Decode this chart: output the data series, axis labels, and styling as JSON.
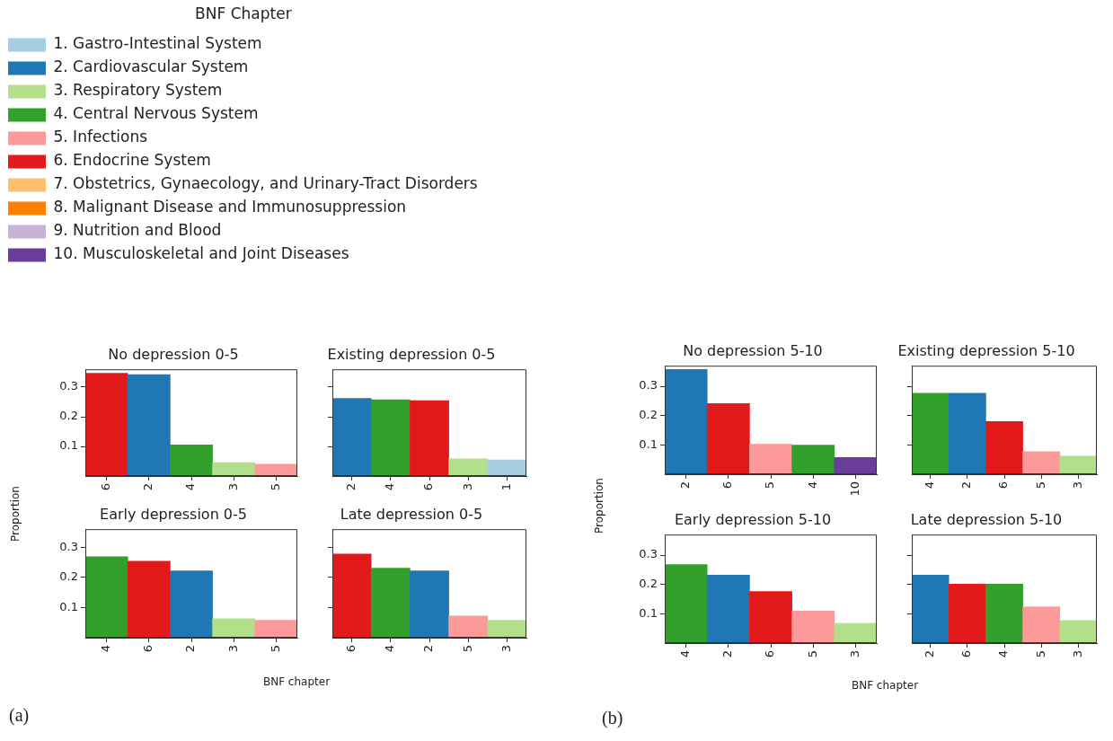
{
  "chart_data": [
    {
      "type": "other",
      "legend_title": "BNF Chapter",
      "legend": "top left",
      "series": [
        {
          "name": "1. Gastro-Intestinal System",
          "color": "#a6cee3"
        },
        {
          "name": "2. Cardiovascular System",
          "color": "#1f78b4"
        },
        {
          "name": "3. Respiratory System",
          "color": "#b2df8a"
        },
        {
          "name": "4. Central Nervous System",
          "color": "#33a02c"
        },
        {
          "name": "5. Infections",
          "color": "#fb9a99"
        },
        {
          "name": "6. Endocrine System",
          "color": "#e31a1c"
        },
        {
          "name": "7. Obstetrics, Gynaecology, and Urinary-Tract Disorders",
          "color": "#fdbf6f"
        },
        {
          "name": "8. Malignant Disease and Immunosuppression",
          "color": "#ff7f00"
        },
        {
          "name": "9. Nutrition and Blood",
          "color": "#cab2d6"
        },
        {
          "name": "10. Musculoskeletal and Joint Diseases",
          "color": "#6a3d9a"
        }
      ]
    },
    {
      "type": "bar",
      "title": "No depression 0-5",
      "ylabel": "Proportion",
      "categories": [
        "6",
        "2",
        "4",
        "3",
        "5"
      ],
      "values": [
        0.347,
        0.342,
        0.105,
        0.045,
        0.04
      ],
      "colors": [
        "#e31a1c",
        "#1f78b4",
        "#33a02c",
        "#b2df8a",
        "#fb9a99"
      ],
      "ylim": [
        0,
        0.36
      ],
      "yticks": [
        0.1,
        0.2,
        0.3
      ]
    },
    {
      "type": "bar",
      "title": "Existing depression 0-5",
      "categories": [
        "2",
        "4",
        "6",
        "3",
        "1"
      ],
      "values": [
        0.262,
        0.257,
        0.254,
        0.058,
        0.054
      ],
      "colors": [
        "#1f78b4",
        "#33a02c",
        "#e31a1c",
        "#b2df8a",
        "#a6cee3"
      ],
      "ylim": [
        0,
        0.36
      ],
      "yticks": [
        0.1,
        0.2,
        0.3
      ],
      "tick_labels": "x"
    },
    {
      "type": "bar",
      "title": "Early depression 0-5",
      "xlabel": "BNF chapter",
      "annotations": [
        "(a)"
      ],
      "categories": [
        "4",
        "6",
        "2",
        "3",
        "5"
      ],
      "values": [
        0.269,
        0.254,
        0.222,
        0.063,
        0.058
      ],
      "colors": [
        "#33a02c",
        "#e31a1c",
        "#1f78b4",
        "#b2df8a",
        "#fb9a99"
      ],
      "ylim": [
        0,
        0.36
      ],
      "yticks": [
        0.1,
        0.2,
        0.3
      ]
    },
    {
      "type": "bar",
      "title": "Late depression 0-5",
      "categories": [
        "6",
        "4",
        "2",
        "5",
        "3"
      ],
      "values": [
        0.278,
        0.231,
        0.222,
        0.072,
        0.058
      ],
      "colors": [
        "#e31a1c",
        "#33a02c",
        "#1f78b4",
        "#fb9a99",
        "#b2df8a"
      ],
      "ylim": [
        0,
        0.36
      ],
      "yticks": [
        0.1,
        0.2,
        0.3
      ],
      "tick_labels": "x"
    },
    {
      "type": "bar",
      "title": "No depression 5-10",
      "ylabel": "Proportion",
      "categories": [
        "2",
        "6",
        "5",
        "4",
        "10"
      ],
      "values": [
        0.357,
        0.241,
        0.102,
        0.099,
        0.057
      ],
      "colors": [
        "#1f78b4",
        "#e31a1c",
        "#fb9a99",
        "#33a02c",
        "#6a3d9a"
      ],
      "ylim": [
        0,
        0.37
      ],
      "yticks": [
        0.1,
        0.2,
        0.3
      ]
    },
    {
      "type": "bar",
      "title": "Existing depression 5-10",
      "categories": [
        "4",
        "2",
        "6",
        "5",
        "3"
      ],
      "values": [
        0.276,
        0.276,
        0.18,
        0.077,
        0.062
      ],
      "colors": [
        "#33a02c",
        "#1f78b4",
        "#e31a1c",
        "#fb9a99",
        "#b2df8a"
      ],
      "ylim": [
        0,
        0.37
      ],
      "yticks": [
        0.1,
        0.2,
        0.3
      ],
      "tick_labels": "x"
    },
    {
      "type": "bar",
      "title": "Early depression 5-10",
      "xlabel": "BNF chapter",
      "annotations": [
        "(b)"
      ],
      "categories": [
        "4",
        "2",
        "6",
        "5",
        "3"
      ],
      "values": [
        0.268,
        0.232,
        0.176,
        0.109,
        0.067
      ],
      "colors": [
        "#33a02c",
        "#1f78b4",
        "#e31a1c",
        "#fb9a99",
        "#b2df8a"
      ],
      "ylim": [
        0,
        0.37
      ],
      "yticks": [
        0.1,
        0.2,
        0.3
      ]
    },
    {
      "type": "bar",
      "title": "Late depression 5-10",
      "categories": [
        "2",
        "6",
        "4",
        "5",
        "3"
      ],
      "values": [
        0.232,
        0.201,
        0.201,
        0.124,
        0.077
      ],
      "colors": [
        "#1f78b4",
        "#e31a1c",
        "#33a02c",
        "#fb9a99",
        "#b2df8a"
      ],
      "ylim": [
        0,
        0.37
      ],
      "yticks": [
        0.1,
        0.2,
        0.3
      ],
      "tick_labels": "x"
    }
  ]
}
